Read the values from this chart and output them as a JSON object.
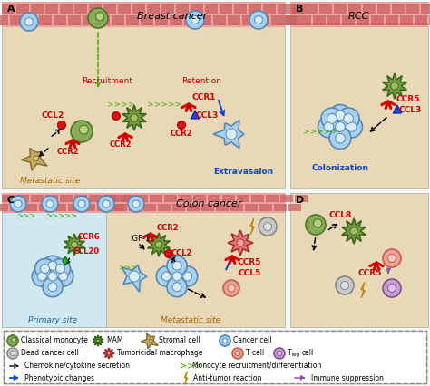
{
  "panel_A_label": "A",
  "panel_B_label": "B",
  "panel_C_label": "C",
  "panel_D_label": "D",
  "breast_cancer_label": "Breast cancer",
  "rcc_label": "RCC",
  "colon_cancer_label": "Colon cancer",
  "metastatic_site_A": "Metastatic site",
  "metastatic_site_C": "Metastatic site",
  "primary_site_C": "Primary site",
  "extravasation_label": "Extravasaion",
  "colonization_label": "Colonization",
  "retention_label": "Retention",
  "recruitment_label": "Recruitment",
  "igf1_label": "IGF-1",
  "colors": {
    "bg_tan": "#e8d8b8",
    "bg_blue": "#d0e8f0",
    "bg_white": "#f8f8f4",
    "vessel_pink": "#f0a0a0",
    "vessel_stripe": "#c86060",
    "mono_fill": "#8aaa58",
    "mono_edge": "#4a7a28",
    "mam_fill": "#7a9a48",
    "mam_edge": "#3a6a18",
    "cancer_fill": "#a8d0f0",
    "cancer_edge": "#5888b0",
    "dead_fill": "#c8c8c8",
    "dead_edge": "#888888",
    "tumor_fill": "#e87878",
    "tumor_edge": "#a03030",
    "tcell_fill": "#f0a090",
    "tcell_edge": "#c06050",
    "treg_fill": "#c8a0d0",
    "treg_edge": "#805090",
    "stromal_fill": "#c0a860",
    "stromal_edge": "#806828",
    "red": "#cc0000",
    "blue": "#1144cc",
    "green_arr": "#44aa00",
    "black": "#111111",
    "orange_site": "#aa6600"
  }
}
